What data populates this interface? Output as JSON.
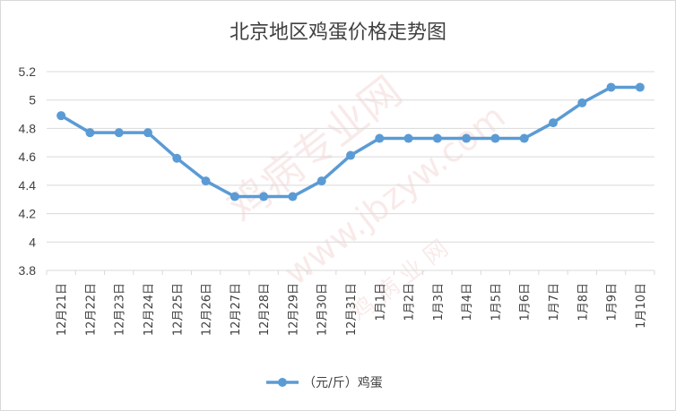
{
  "chart_data": {
    "type": "line",
    "title": "北京地区鸡蛋价格走势图",
    "categories": [
      "12月21日",
      "12月22日",
      "12月23日",
      "12月24日",
      "12月25日",
      "12月26日",
      "12月27日",
      "12月28日",
      "12月29日",
      "12月30日",
      "12月31日",
      "1月1日",
      "1月2日",
      "1月3日",
      "1月4日",
      "1月5日",
      "1月6日",
      "1月7日",
      "1月8日",
      "1月9日",
      "1月10日"
    ],
    "series": [
      {
        "name": "（元/斤）鸡蛋",
        "color": "#5b9bd5",
        "values": [
          4.89,
          4.77,
          4.77,
          4.77,
          4.59,
          4.43,
          4.32,
          4.32,
          4.32,
          4.43,
          4.61,
          4.73,
          4.73,
          4.73,
          4.73,
          4.73,
          4.73,
          4.84,
          4.98,
          5.09,
          5.09
        ]
      }
    ],
    "yticks": [
      "3.8",
      "4",
      "4.2",
      "4.4",
      "4.6",
      "4.8",
      "5",
      "5.2"
    ],
    "ylim": [
      3.8,
      5.2
    ],
    "grid": true,
    "legend": "bottom"
  },
  "watermark": {
    "brand": "鸡病专业网",
    "url": "www.jbzyw.com",
    "sub": "鸡 病 业 网"
  }
}
